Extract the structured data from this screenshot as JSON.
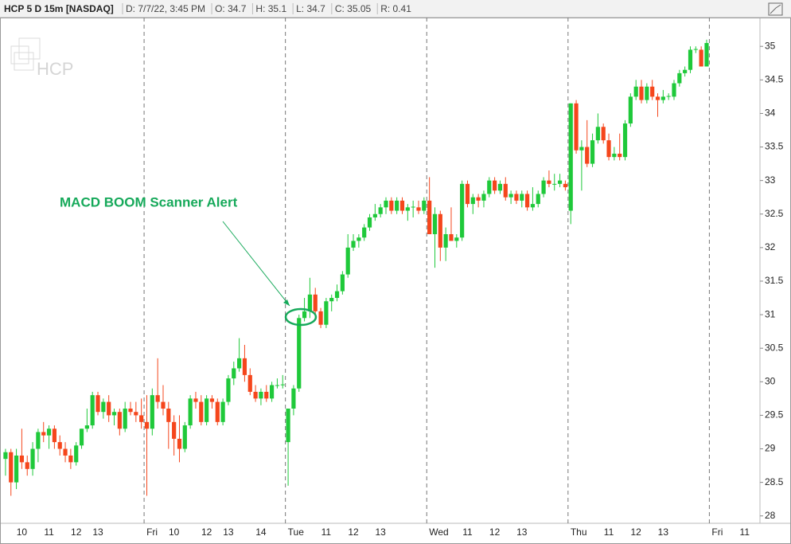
{
  "chart_data": {
    "type": "candlestick",
    "title": "HCP 5 D 15m [NASDAQ]",
    "info": [
      "D: 7/7/22, 3:45 PM",
      "O: 34.7",
      "H: 35.1",
      "L: 34.7",
      "C: 35.05",
      "R: 0.41"
    ],
    "watermark": "HCP",
    "annotation": "MACD BOOM Scanner Alert",
    "up_color": "#1fc93a",
    "down_color": "#f5461c",
    "annotation_color": "#16a95a",
    "ylim": [
      27.89,
      35.43
    ],
    "yticks": [
      28,
      28.5,
      29,
      29.5,
      30,
      30.5,
      31,
      31.5,
      32,
      32.5,
      33,
      33.5,
      34,
      34.5,
      35
    ],
    "categories": [
      null,
      null,
      null,
      "10",
      null,
      null,
      null,
      null,
      "11",
      null,
      null,
      null,
      null,
      "12",
      null,
      null,
      null,
      "13",
      null,
      null,
      null,
      null,
      null,
      null,
      null,
      null,
      "Fri",
      null,
      null,
      null,
      null,
      "10",
      null,
      null,
      null,
      null,
      null,
      "12",
      null,
      null,
      null,
      "13",
      null,
      null,
      null,
      null,
      null,
      "14",
      null,
      null,
      null,
      null,
      "Tue",
      null,
      null,
      null,
      null,
      null,
      null,
      "11",
      null,
      null,
      null,
      null,
      "12",
      null,
      null,
      null,
      null,
      "13",
      null,
      null,
      null,
      null,
      null,
      null,
      null,
      null,
      "Wed",
      null,
      null,
      null,
      null,
      null,
      null,
      "11",
      null,
      null,
      null,
      null,
      "12",
      null,
      null,
      null,
      null,
      "13",
      null,
      null,
      null,
      null,
      null,
      null,
      null,
      null,
      "Thu",
      null,
      null,
      null,
      null,
      null,
      null,
      "11",
      null,
      null,
      null,
      null,
      "12",
      null,
      null,
      null,
      null,
      "13",
      null,
      null,
      null,
      null,
      null,
      null,
      null,
      null,
      "Fri",
      null,
      null,
      null,
      null,
      null,
      "11"
    ],
    "open": [
      28.85,
      28.95,
      28.5,
      28.9,
      28.8,
      28.7,
      29.0,
      29.25,
      29.2,
      29.3,
      29.1,
      29.0,
      28.9,
      28.8,
      29.05,
      29.3,
      29.35,
      29.8,
      29.55,
      29.7,
      29.5,
      29.55,
      29.3,
      29.6,
      29.55,
      29.5,
      29.4,
      29.3,
      29.8,
      29.7,
      29.6,
      29.4,
      29.15,
      29.0,
      29.35,
      29.75,
      29.7,
      29.4,
      29.75,
      29.7,
      29.4,
      29.7,
      30.05,
      30.2,
      30.35,
      30.1,
      29.85,
      29.75,
      29.85,
      29.75,
      29.95,
      29.95,
      29.1,
      29.6,
      29.9,
      30.95,
      31.05,
      31.3,
      31.05,
      30.85,
      31.2,
      31.25,
      31.35,
      31.6,
      32.0,
      32.1,
      32.15,
      32.3,
      32.45,
      32.5,
      32.6,
      32.7,
      32.55,
      32.7,
      32.55,
      32.6,
      32.6,
      32.55,
      32.7,
      32.2,
      32.5,
      32.0,
      32.2,
      32.1,
      32.15,
      32.95,
      32.65,
      32.75,
      32.7,
      32.8,
      33.0,
      32.85,
      32.95,
      32.75,
      32.8,
      32.7,
      32.8,
      32.6,
      32.65,
      32.8,
      33.0,
      32.95,
      32.95,
      32.95,
      32.55,
      34.15,
      33.45,
      33.5,
      33.25,
      33.6,
      33.8,
      33.6,
      33.35,
      33.4,
      33.35,
      33.85,
      34.25,
      34.4,
      34.2,
      34.4,
      34.25,
      34.2,
      34.25,
      34.25,
      34.45,
      34.6,
      34.65,
      34.95,
      34.95,
      34.7,
      null,
      null,
      null,
      null,
      null,
      null,
      null
    ],
    "high": [
      29.0,
      29.0,
      29.0,
      29.3,
      28.9,
      29.1,
      29.3,
      29.4,
      29.35,
      29.35,
      29.2,
      29.1,
      29.0,
      29.1,
      29.3,
      29.6,
      29.85,
      29.85,
      29.75,
      29.8,
      29.6,
      29.6,
      29.7,
      29.7,
      29.7,
      29.75,
      29.8,
      29.9,
      30.35,
      29.95,
      29.7,
      29.5,
      29.5,
      29.4,
      29.8,
      29.85,
      29.8,
      29.8,
      29.8,
      29.75,
      29.75,
      30.1,
      30.3,
      30.65,
      30.55,
      30.2,
      29.95,
      29.9,
      29.95,
      30.0,
      30.05,
      30.1,
      29.6,
      29.95,
      31.0,
      31.25,
      31.55,
      31.4,
      31.1,
      31.25,
      31.3,
      31.45,
      31.65,
      32.2,
      32.2,
      32.2,
      32.35,
      32.5,
      32.65,
      32.65,
      32.75,
      32.75,
      32.75,
      32.75,
      32.65,
      32.7,
      32.7,
      32.75,
      33.05,
      32.6,
      32.55,
      32.3,
      32.6,
      32.2,
      33.0,
      33.0,
      32.8,
      32.8,
      32.85,
      33.05,
      33.05,
      33.0,
      33.05,
      32.85,
      32.85,
      32.85,
      32.85,
      32.9,
      32.85,
      33.05,
      33.15,
      33.1,
      33.1,
      33.0,
      34.15,
      34.2,
      33.6,
      33.9,
      33.7,
      34.0,
      33.85,
      33.7,
      33.5,
      33.7,
      33.9,
      34.3,
      34.5,
      34.5,
      34.45,
      34.5,
      34.3,
      34.35,
      34.3,
      34.5,
      34.65,
      34.7,
      35.0,
      35.0,
      35.0,
      35.1,
      null,
      null,
      null,
      null,
      null,
      null,
      null
    ],
    "low": [
      28.6,
      28.3,
      28.4,
      28.7,
      28.6,
      28.6,
      28.8,
      29.1,
      29.0,
      29.0,
      28.9,
      28.8,
      28.7,
      28.75,
      29.0,
      29.25,
      29.3,
      29.5,
      29.45,
      29.4,
      29.35,
      29.2,
      29.25,
      29.5,
      29.4,
      29.3,
      28.3,
      29.2,
      29.6,
      29.5,
      29.0,
      28.9,
      28.8,
      28.95,
      29.3,
      29.6,
      29.35,
      29.35,
      29.6,
      29.35,
      29.35,
      29.65,
      29.95,
      30.15,
      30.0,
      29.8,
      29.7,
      29.65,
      29.7,
      29.7,
      29.9,
      29.9,
      28.45,
      29.5,
      29.85,
      30.9,
      30.95,
      30.95,
      30.8,
      30.8,
      31.05,
      31.2,
      31.3,
      31.55,
      31.95,
      32.0,
      32.1,
      32.25,
      32.4,
      32.45,
      32.5,
      32.5,
      32.5,
      32.5,
      32.4,
      32.45,
      32.5,
      32.5,
      32.2,
      31.7,
      31.8,
      31.8,
      32.1,
      32.0,
      32.1,
      32.6,
      32.5,
      32.6,
      32.6,
      32.75,
      32.8,
      32.8,
      32.7,
      32.65,
      32.65,
      32.6,
      32.55,
      32.55,
      32.6,
      32.75,
      32.9,
      32.85,
      32.9,
      32.85,
      32.35,
      33.4,
      32.85,
      33.2,
      33.2,
      33.55,
      33.55,
      33.3,
      33.3,
      33.3,
      33.3,
      33.8,
      34.2,
      34.15,
      34.15,
      34.2,
      33.95,
      34.15,
      34.2,
      34.2,
      34.4,
      34.55,
      34.6,
      34.9,
      34.7,
      34.7,
      null,
      null,
      null,
      null,
      null,
      null,
      null
    ],
    "close": [
      28.95,
      28.5,
      28.9,
      28.8,
      28.7,
      29.0,
      29.25,
      29.2,
      29.3,
      29.1,
      29.0,
      28.9,
      28.8,
      29.05,
      29.3,
      29.35,
      29.8,
      29.55,
      29.7,
      29.5,
      29.55,
      29.3,
      29.6,
      29.55,
      29.5,
      29.4,
      29.3,
      29.8,
      29.7,
      29.6,
      29.4,
      29.15,
      29.0,
      29.35,
      29.75,
      29.7,
      29.4,
      29.75,
      29.7,
      29.4,
      29.7,
      30.05,
      30.2,
      30.35,
      30.1,
      29.85,
      29.75,
      29.85,
      29.75,
      29.95,
      29.95,
      29.96,
      29.6,
      29.9,
      30.95,
      31.05,
      31.3,
      31.05,
      30.85,
      31.2,
      31.25,
      31.35,
      31.6,
      32.0,
      32.1,
      32.15,
      32.3,
      32.45,
      32.5,
      32.6,
      32.7,
      32.55,
      32.7,
      32.55,
      32.6,
      32.61,
      32.55,
      32.7,
      32.2,
      32.5,
      32.0,
      32.2,
      32.1,
      32.15,
      32.95,
      32.65,
      32.75,
      32.7,
      32.8,
      33.0,
      32.85,
      32.95,
      32.75,
      32.8,
      32.7,
      32.8,
      32.6,
      32.65,
      32.8,
      33.0,
      32.95,
      32.95,
      33.0,
      32.9,
      34.15,
      33.45,
      33.5,
      33.25,
      33.6,
      33.8,
      33.6,
      33.35,
      33.4,
      33.35,
      33.85,
      34.25,
      34.4,
      34.2,
      34.4,
      34.25,
      34.2,
      34.25,
      34.26,
      34.45,
      34.6,
      34.65,
      34.95,
      34.96,
      34.7,
      35.05,
      null,
      null,
      null,
      null,
      null,
      null,
      null
    ]
  }
}
